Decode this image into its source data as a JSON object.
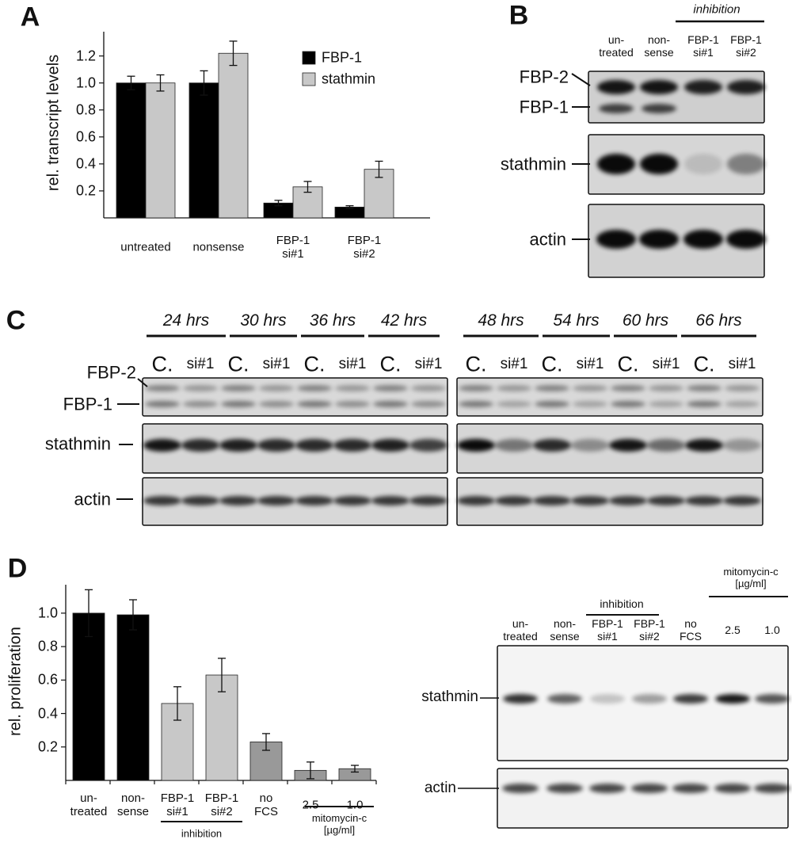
{
  "panel_labels": [
    "A",
    "B",
    "C",
    "D"
  ],
  "chart_data": [
    {
      "type": "bar",
      "ylabel": "rel. transcript levels",
      "categories": [
        "untreated",
        "nonsense",
        "FBP-1\nsi#1",
        "FBP-1\nsi#2"
      ],
      "series": [
        {
          "name": "FBP-1",
          "color": "#000000",
          "values": [
            1.0,
            1.0,
            0.11,
            0.08
          ],
          "errors": [
            0.05,
            0.09,
            0.02,
            0.01
          ]
        },
        {
          "name": "stathmin",
          "color": "#c8c8c8",
          "values": [
            1.0,
            1.22,
            0.23,
            0.36
          ],
          "errors": [
            0.06,
            0.09,
            0.04,
            0.06
          ]
        }
      ],
      "ylim": [
        0,
        1.38
      ],
      "yticks": [
        0.2,
        0.4,
        0.6,
        0.8,
        {
          "value": 1,
          "label": "1.0"
        },
        1.2
      ],
      "legend": "upper right"
    },
    {
      "type": "bar",
      "ylabel": "rel. proliferation",
      "categories": [
        "un-\ntreated",
        "non-\nsense",
        "FBP-1\nsi#1",
        "FBP-1\nsi#2",
        "no\nFCS",
        "2.5",
        "1.0"
      ],
      "values": [
        1.0,
        0.99,
        0.46,
        0.63,
        0.23,
        0.06,
        0.07
      ],
      "errors": [
        0.14,
        0.09,
        0.1,
        0.1,
        0.05,
        0.05,
        0.02
      ],
      "colors": [
        "#000000",
        "#000000",
        "#c8c8c8",
        "#c8c8c8",
        "#999999",
        "#999999",
        "#999999"
      ],
      "groups": [
        "inhibition",
        "mitomycin-c\n[µg/ml]"
      ],
      "ylim": [
        0,
        1.17
      ],
      "yticks": [
        0.2,
        0.4,
        0.6,
        0.8,
        {
          "value": 1,
          "label": "1.0"
        }
      ]
    }
  ],
  "blots": {
    "B": {
      "group": "inhibition",
      "lanes": [
        "un-\ntreated",
        "non-\nsense",
        "FBP-1\nsi#1",
        "FBP-1\nsi#2"
      ],
      "rows": [
        "FBP-2",
        "FBP-1",
        "stathmin",
        "actin"
      ]
    },
    "C": {
      "times": [
        "24 hrs",
        "30 hrs",
        "36 hrs",
        "42 hrs",
        "48 hrs",
        "54 hrs",
        "60 hrs",
        "66 hrs"
      ],
      "lanes": [
        "C.",
        "si#1",
        "C.",
        "si#1",
        "C.",
        "si#1",
        "C.",
        "si#1",
        "C.",
        "si#1",
        "C.",
        "si#1",
        "C.",
        "si#1",
        "C.",
        "si#1"
      ],
      "rows": [
        "FBP-2",
        "FBP-1",
        "stathmin",
        "actin"
      ]
    },
    "D": {
      "groups": [
        "inhibition",
        "mitomycin-c\n[µg/ml]"
      ],
      "lanes": [
        "un-\ntreated",
        "non-\nsense",
        "FBP-1\nsi#1",
        "FBP-1\nsi#2",
        "no\nFCS",
        "2.5",
        "1.0"
      ],
      "rows": [
        "stathmin",
        "actin"
      ]
    }
  }
}
